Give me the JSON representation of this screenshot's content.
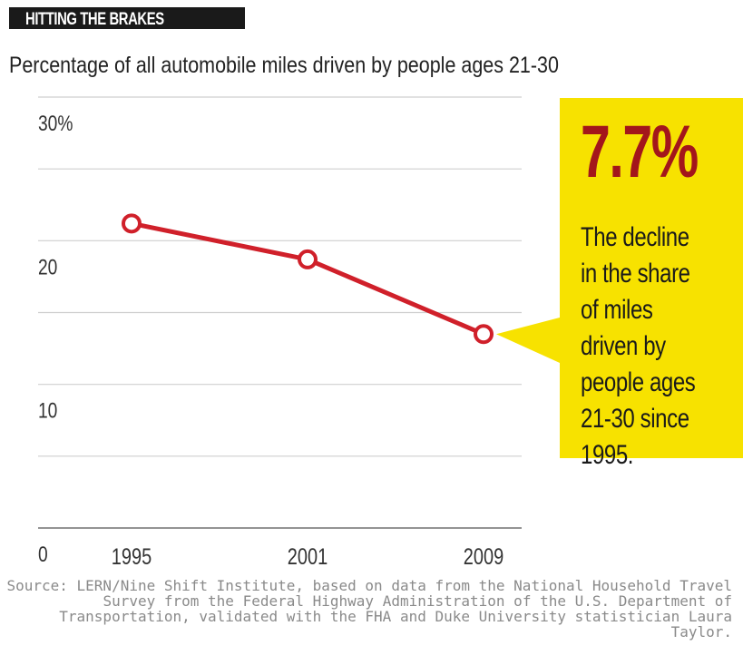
{
  "header": {
    "title": "HITTING THE BRAKES"
  },
  "subtitle": "Percentage of all automobile miles driven by people ages 21-30",
  "chart_data": {
    "type": "line",
    "x": [
      "1995",
      "2001",
      "2009"
    ],
    "series": [
      {
        "values": [
          21.2,
          18.7,
          13.5
        ]
      }
    ],
    "ylim": [
      0,
      30
    ],
    "yticks": [
      {
        "value": 30,
        "label": "30%"
      },
      {
        "value": 20,
        "label": "20"
      },
      {
        "value": 10,
        "label": "10"
      },
      {
        "value": 0,
        "label": "0"
      }
    ],
    "gridlines": [
      0,
      5,
      10,
      15,
      20,
      25,
      30
    ],
    "grid": true,
    "line_color": "#d0202a",
    "marker_fill": "#ffffff"
  },
  "callout": {
    "value": "7.7%",
    "text": "The decline in the share of miles driven by people ages 21-30 since 1995.",
    "background": "#f7e200",
    "value_color": "#a3161b"
  },
  "source": "Source: LERN/Nine Shift Institute, based on data from the National Household Travel Survey from the Federal Highway Administration of the U.S. Department of Transportation, validated with the FHA and Duke University statistician Laura Taylor."
}
